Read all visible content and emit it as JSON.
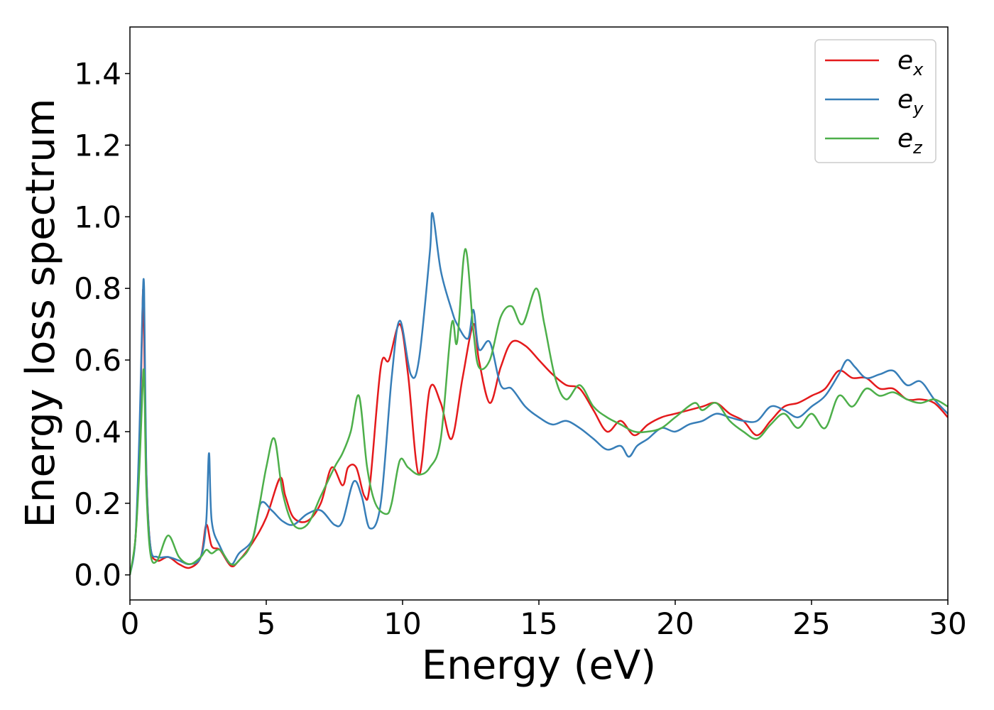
{
  "chart_data": {
    "type": "line",
    "title": "",
    "xlabel": "Energy (eV)",
    "ylabel": "Energy loss spectrum",
    "xlim": [
      0,
      30
    ],
    "ylim": [
      -0.07,
      1.53
    ],
    "xticks": [
      0,
      5,
      10,
      15,
      20,
      25,
      30
    ],
    "xtick_labels": [
      "0",
      "5",
      "10",
      "15",
      "20",
      "25",
      "30"
    ],
    "yticks": [
      0.0,
      0.2,
      0.4,
      0.6,
      0.8,
      1.0,
      1.2,
      1.4
    ],
    "ytick_labels": [
      "0.0",
      "0.2",
      "0.4",
      "0.6",
      "0.8",
      "1.0",
      "1.2",
      "1.4"
    ],
    "grid": false,
    "legend_position": "top-right",
    "series": [
      {
        "name": "e_x",
        "legend_base": "e",
        "legend_sub": "x",
        "color": "#e41a1c",
        "x": [
          0,
          0.2,
          0.35,
          0.45,
          0.5,
          0.6,
          0.75,
          1.0,
          1.4,
          1.8,
          2.2,
          2.6,
          2.8,
          3.0,
          3.3,
          3.7,
          4.0,
          4.5,
          5.0,
          5.5,
          5.7,
          6.0,
          6.5,
          7.0,
          7.4,
          7.8,
          8.0,
          8.3,
          8.6,
          8.8,
          9.2,
          9.5,
          9.9,
          10.2,
          10.6,
          11.0,
          11.4,
          11.8,
          12.2,
          12.6,
          12.8,
          13.2,
          13.6,
          14.0,
          14.5,
          15.0,
          15.5,
          16.0,
          16.5,
          17.0,
          17.5,
          18.0,
          18.5,
          19.0,
          19.5,
          20.0,
          20.5,
          21.0,
          21.5,
          22.0,
          22.5,
          23.0,
          23.5,
          24.0,
          24.5,
          25.0,
          25.5,
          26.0,
          26.5,
          27.0,
          27.5,
          28.0,
          28.5,
          29.0,
          29.5,
          30.0
        ],
        "values": [
          0.0,
          0.1,
          0.35,
          0.7,
          0.77,
          0.3,
          0.08,
          0.04,
          0.05,
          0.03,
          0.02,
          0.05,
          0.14,
          0.08,
          0.07,
          0.025,
          0.04,
          0.09,
          0.16,
          0.27,
          0.22,
          0.16,
          0.15,
          0.2,
          0.3,
          0.25,
          0.3,
          0.3,
          0.22,
          0.25,
          0.58,
          0.6,
          0.7,
          0.56,
          0.28,
          0.52,
          0.48,
          0.38,
          0.55,
          0.7,
          0.6,
          0.48,
          0.58,
          0.65,
          0.64,
          0.6,
          0.56,
          0.53,
          0.52,
          0.46,
          0.4,
          0.43,
          0.39,
          0.42,
          0.44,
          0.45,
          0.46,
          0.47,
          0.48,
          0.45,
          0.43,
          0.39,
          0.43,
          0.47,
          0.48,
          0.5,
          0.52,
          0.57,
          0.55,
          0.55,
          0.52,
          0.52,
          0.49,
          0.49,
          0.48,
          0.44
        ]
      },
      {
        "name": "e_y",
        "legend_base": "e",
        "legend_sub": "y",
        "color": "#377eb8",
        "x": [
          0,
          0.2,
          0.35,
          0.45,
          0.52,
          0.6,
          0.75,
          1.0,
          1.4,
          1.8,
          2.2,
          2.6,
          2.8,
          2.9,
          3.0,
          3.3,
          3.7,
          4.0,
          4.5,
          4.8,
          5.2,
          5.6,
          6.0,
          6.5,
          7.0,
          7.5,
          7.8,
          8.2,
          8.5,
          8.8,
          9.2,
          9.6,
          9.9,
          10.3,
          10.6,
          11.0,
          11.1,
          11.4,
          11.8,
          12.0,
          12.4,
          12.6,
          12.8,
          13.2,
          13.6,
          14.0,
          14.5,
          15.0,
          15.5,
          16.0,
          16.5,
          17.0,
          17.5,
          18.0,
          18.3,
          18.6,
          19.0,
          19.5,
          20.0,
          20.5,
          21.0,
          21.5,
          22.0,
          22.5,
          23.0,
          23.5,
          24.0,
          24.5,
          25.0,
          25.5,
          26.0,
          26.3,
          26.6,
          27.0,
          27.5,
          28.0,
          28.5,
          29.0,
          29.5,
          30.0
        ],
        "values": [
          0.0,
          0.1,
          0.4,
          0.72,
          0.8,
          0.3,
          0.08,
          0.05,
          0.05,
          0.04,
          0.03,
          0.05,
          0.15,
          0.34,
          0.15,
          0.08,
          0.03,
          0.06,
          0.1,
          0.2,
          0.18,
          0.15,
          0.14,
          0.17,
          0.18,
          0.14,
          0.15,
          0.26,
          0.22,
          0.13,
          0.2,
          0.55,
          0.71,
          0.56,
          0.6,
          0.9,
          1.01,
          0.85,
          0.74,
          0.7,
          0.66,
          0.74,
          0.63,
          0.65,
          0.53,
          0.52,
          0.47,
          0.44,
          0.42,
          0.43,
          0.41,
          0.38,
          0.35,
          0.36,
          0.33,
          0.36,
          0.38,
          0.41,
          0.4,
          0.42,
          0.43,
          0.45,
          0.44,
          0.43,
          0.43,
          0.47,
          0.46,
          0.44,
          0.47,
          0.5,
          0.56,
          0.6,
          0.58,
          0.55,
          0.56,
          0.57,
          0.53,
          0.54,
          0.49,
          0.45
        ]
      },
      {
        "name": "e_z",
        "legend_base": "e",
        "legend_sub": "z",
        "color": "#4daf4a",
        "x": [
          0,
          0.2,
          0.35,
          0.45,
          0.52,
          0.6,
          0.75,
          1.0,
          1.4,
          1.8,
          2.2,
          2.6,
          2.8,
          3.0,
          3.3,
          3.7,
          4.0,
          4.5,
          5.0,
          5.3,
          5.6,
          6.0,
          6.5,
          7.0,
          7.5,
          7.8,
          8.1,
          8.4,
          8.7,
          9.0,
          9.4,
          9.6,
          9.9,
          10.2,
          10.6,
          11.0,
          11.4,
          11.8,
          12.0,
          12.3,
          12.6,
          12.8,
          13.2,
          13.6,
          14.0,
          14.4,
          14.9,
          15.2,
          15.6,
          16.0,
          16.5,
          17.0,
          17.5,
          18.0,
          18.5,
          19.0,
          19.5,
          20.0,
          20.7,
          21.0,
          21.5,
          22.0,
          22.5,
          23.0,
          23.5,
          24.0,
          24.5,
          25.0,
          25.5,
          26.0,
          26.5,
          27.0,
          27.5,
          28.0,
          28.5,
          29.0,
          29.5,
          30.0
        ],
        "values": [
          0.0,
          0.1,
          0.3,
          0.5,
          0.56,
          0.25,
          0.06,
          0.04,
          0.11,
          0.05,
          0.03,
          0.05,
          0.07,
          0.06,
          0.07,
          0.03,
          0.04,
          0.1,
          0.3,
          0.38,
          0.23,
          0.14,
          0.14,
          0.22,
          0.3,
          0.34,
          0.4,
          0.5,
          0.3,
          0.2,
          0.17,
          0.2,
          0.32,
          0.3,
          0.28,
          0.3,
          0.38,
          0.7,
          0.65,
          0.91,
          0.68,
          0.58,
          0.6,
          0.72,
          0.75,
          0.7,
          0.8,
          0.7,
          0.55,
          0.49,
          0.53,
          0.47,
          0.44,
          0.42,
          0.4,
          0.4,
          0.41,
          0.44,
          0.48,
          0.46,
          0.48,
          0.43,
          0.4,
          0.38,
          0.42,
          0.45,
          0.41,
          0.45,
          0.41,
          0.5,
          0.47,
          0.52,
          0.5,
          0.51,
          0.49,
          0.48,
          0.49,
          0.47
        ]
      }
    ]
  }
}
